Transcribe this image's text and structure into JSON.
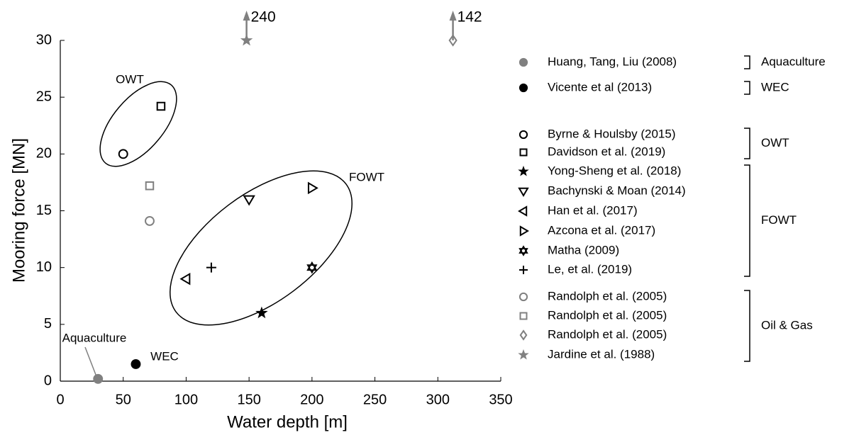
{
  "chart_data": {
    "type": "scatter",
    "x_label": "Water depth [m]",
    "y_label": "Mooring force [MN]",
    "xlim": [
      0,
      350
    ],
    "ylim": [
      0,
      30
    ],
    "xticks": [
      0,
      50,
      100,
      150,
      200,
      250,
      300,
      350
    ],
    "yticks": [
      0,
      5,
      10,
      15,
      20,
      25,
      30
    ],
    "grid": false,
    "annotations": [
      "OWT",
      "FOWT",
      "Aquaculture",
      "WEC"
    ],
    "series": [
      {
        "name": "Huang, Tang, Liu (2008)",
        "group": "Aquaculture",
        "marker": "circle",
        "filled": true,
        "color": "#808080",
        "x": [
          30
        ],
        "y": [
          0.2
        ]
      },
      {
        "name": "Vicente et al (2013)",
        "group": "WEC",
        "marker": "circle",
        "filled": true,
        "color": "#000000",
        "x": [
          60
        ],
        "y": [
          1.5
        ]
      },
      {
        "name": "Byrne & Houlsby (2015)",
        "group": "OWT",
        "marker": "circle",
        "filled": false,
        "color": "#000000",
        "x": [
          50
        ],
        "y": [
          20
        ]
      },
      {
        "name": "Davidson et al. (2019)",
        "group": "OWT",
        "marker": "square",
        "filled": false,
        "color": "#000000",
        "x": [
          80
        ],
        "y": [
          24.2
        ]
      },
      {
        "name": "Yong-Sheng et al. (2018)",
        "group": "FOWT",
        "marker": "star",
        "filled": true,
        "color": "#000000",
        "x": [
          160
        ],
        "y": [
          6
        ]
      },
      {
        "name": "Bachynski & Moan (2014)",
        "group": "FOWT",
        "marker": "triangle-down",
        "filled": false,
        "color": "#000000",
        "x": [
          150
        ],
        "y": [
          16
        ]
      },
      {
        "name": "Han et al. (2017)",
        "group": "FOWT",
        "marker": "triangle-left",
        "filled": false,
        "color": "#000000",
        "x": [
          100
        ],
        "y": [
          9
        ]
      },
      {
        "name": "Azcona et al. (2017)",
        "group": "FOWT",
        "marker": "triangle-right",
        "filled": false,
        "color": "#000000",
        "x": [
          200
        ],
        "y": [
          17
        ]
      },
      {
        "name": "Matha (2009)",
        "group": "FOWT",
        "marker": "hexagram",
        "filled": false,
        "color": "#000000",
        "x": [
          200
        ],
        "y": [
          10
        ]
      },
      {
        "name": "Le, et al. (2019)",
        "group": "FOWT",
        "marker": "plus",
        "filled": false,
        "color": "#000000",
        "x": [
          120
        ],
        "y": [
          10
        ]
      },
      {
        "name": "Randolph et al. (2005)",
        "group": "Oil & Gas",
        "marker": "circle",
        "filled": false,
        "color": "#808080",
        "x": [
          71
        ],
        "y": [
          14.1
        ]
      },
      {
        "name": "Randolph et al. (2005)",
        "group": "Oil & Gas",
        "marker": "square",
        "filled": false,
        "color": "#808080",
        "x": [
          71
        ],
        "y": [
          17.2
        ]
      },
      {
        "name": "Randolph et al. (2005)",
        "group": "Oil & Gas",
        "marker": "diamond",
        "filled": false,
        "color": "#808080",
        "x": [
          312
        ],
        "y": [
          30
        ],
        "arrow_label": "142"
      },
      {
        "name": "Jardine et al. (1988)",
        "group": "Oil & Gas",
        "marker": "star",
        "filled": true,
        "color": "#808080",
        "x": [
          148
        ],
        "y": [
          30
        ],
        "arrow_label": "240"
      }
    ]
  }
}
